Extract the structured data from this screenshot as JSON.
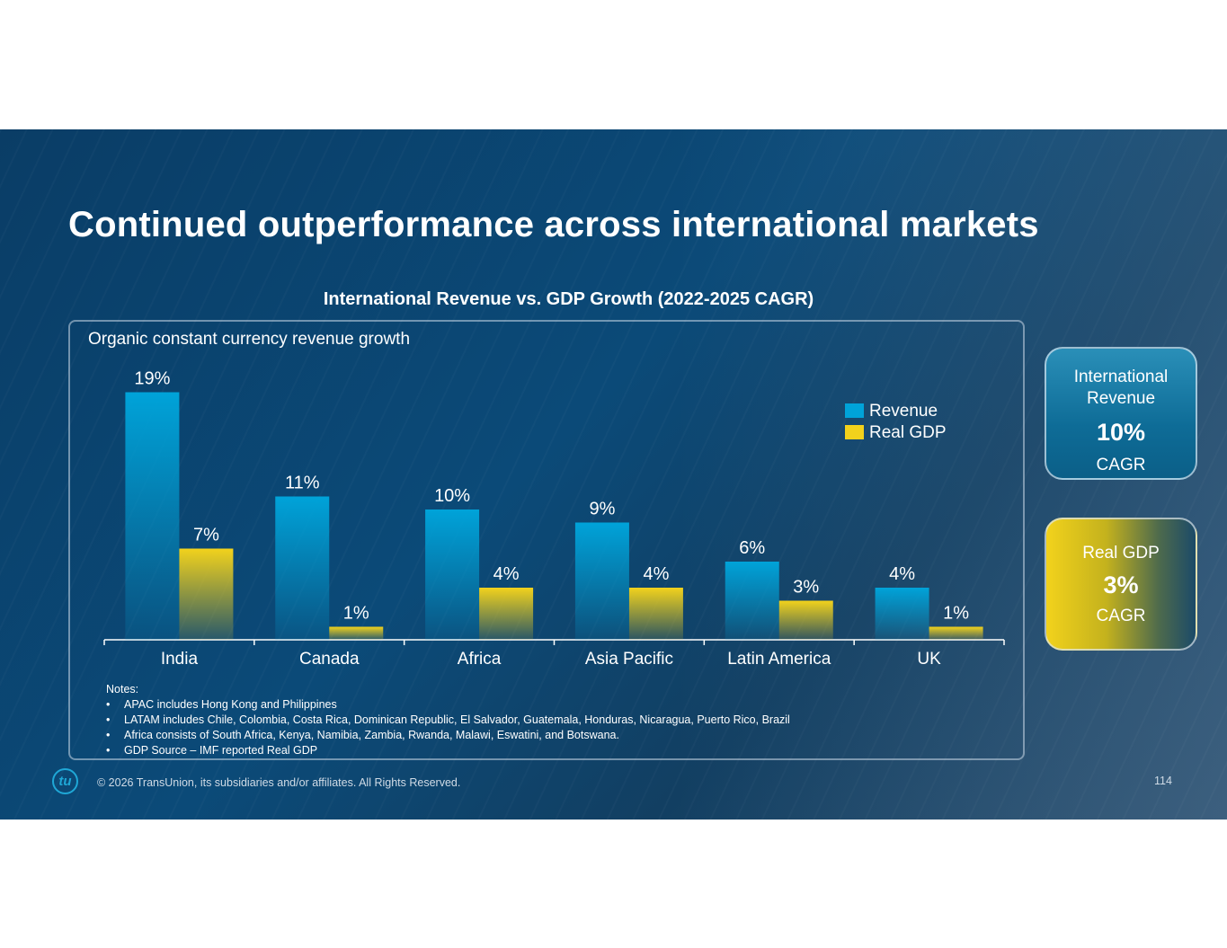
{
  "title": "Continued outperformance across international markets",
  "chart_data": {
    "type": "bar",
    "title": "International Revenue vs. GDP Growth (2022-2025 CAGR)",
    "subtitle": "Organic constant currency revenue growth",
    "categories": [
      "India",
      "Canada",
      "Africa",
      "Asia Pacific",
      "Latin America",
      "UK"
    ],
    "series": [
      {
        "name": "Revenue",
        "values": [
          19,
          11,
          10,
          9,
          6,
          4
        ],
        "labels": [
          "19%",
          "11%",
          "10%",
          "9%",
          "6%",
          "4%"
        ],
        "color": "#00a3d9"
      },
      {
        "name": "Real GDP",
        "values": [
          7,
          1,
          4,
          4,
          3,
          1
        ],
        "labels": [
          "7%",
          "1%",
          "4%",
          "4%",
          "3%",
          "1%"
        ],
        "color": "#f2d21c"
      }
    ],
    "ylim": [
      0,
      20
    ],
    "xlabel": "",
    "ylabel": "",
    "legend_position": "top-right"
  },
  "notes": {
    "heading": "Notes:",
    "items": [
      "APAC includes Hong Kong and Philippines",
      "LATAM includes Chile, Colombia, Costa Rica, Dominican Republic, El Salvador, Guatemala, Honduras, Nicaragua, Puerto Rico, Brazil",
      "Africa consists of South Africa, Kenya, Namibia, Zambia, Rwanda, Malawi, Eswatini, and Botswana.",
      "GDP Source – IMF reported Real GDP"
    ]
  },
  "kpis": {
    "revenue": {
      "label_line1": "International",
      "label_line2": "Revenue",
      "value": "10%",
      "sub": "CAGR"
    },
    "gdp": {
      "label": "Real GDP",
      "value": "3%",
      "sub": "CAGR"
    }
  },
  "footer": {
    "logo": "tu",
    "copyright": "© 2026 TransUnion, its subsidiaries and/or affiliates. All Rights Reserved.",
    "page": "114"
  }
}
